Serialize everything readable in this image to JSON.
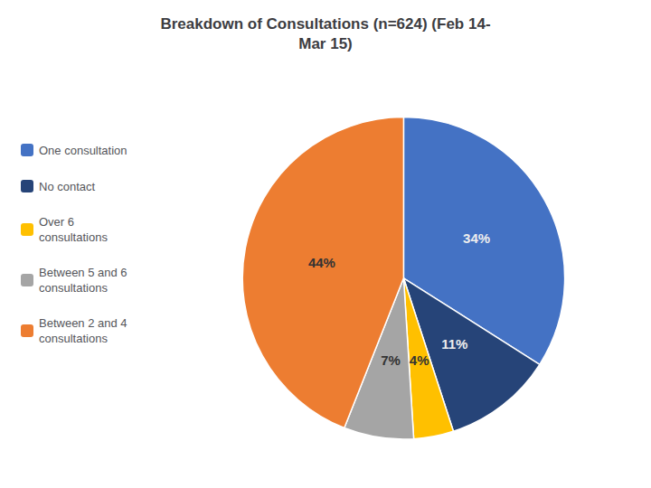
{
  "chart_data": {
    "type": "pie",
    "title": "Breakdown of Consultations (n=624) (Feb 14-\nMar 15)",
    "categories": [
      "One consultation",
      "No contact",
      "Over 6\nconsultations",
      "Between 5 and 6\nconsultations",
      "Between 2 and 4\nconsultations"
    ],
    "values": [
      34,
      11,
      4,
      7,
      44
    ],
    "value_labels": [
      "34%",
      "11%",
      "4%",
      "7%",
      "44%"
    ],
    "colors": [
      "#4472C4",
      "#264478",
      "#FFC000",
      "#A5A5A5",
      "#ED7D31"
    ],
    "data_labels": true,
    "legend": "left"
  }
}
